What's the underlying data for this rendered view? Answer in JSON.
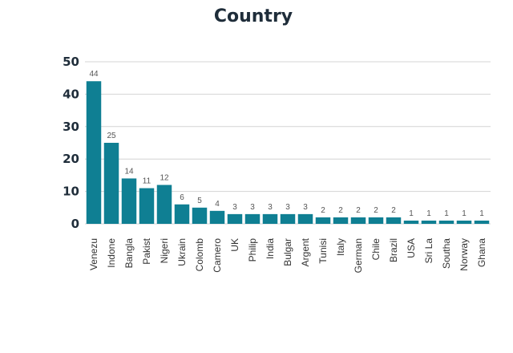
{
  "chart_data": {
    "type": "bar",
    "title": "Country",
    "xlabel": "",
    "ylabel": "",
    "categories": [
      "Venezu",
      "Indone",
      "Bangla",
      "Pakist",
      "Nigeri",
      "Ukrain",
      "Colomb",
      "Camero",
      "UK",
      "Philip",
      "India",
      "Bulgar",
      "Argent",
      "Tunisi",
      "Italy",
      "German",
      "Chile",
      "Brazil",
      "USA",
      "Sri La",
      "Southa",
      "Norway",
      "Ghana"
    ],
    "values": [
      44,
      25,
      14,
      11,
      12,
      6,
      5,
      4,
      3,
      3,
      3,
      3,
      3,
      2,
      2,
      2,
      2,
      2,
      1,
      1,
      1,
      1,
      1
    ],
    "yticks": [
      "0",
      "10",
      "20",
      "30",
      "40",
      "50"
    ],
    "ylim": [
      0,
      50
    ],
    "grid": true,
    "legend": "none",
    "bar_color": "#0f7f93"
  }
}
